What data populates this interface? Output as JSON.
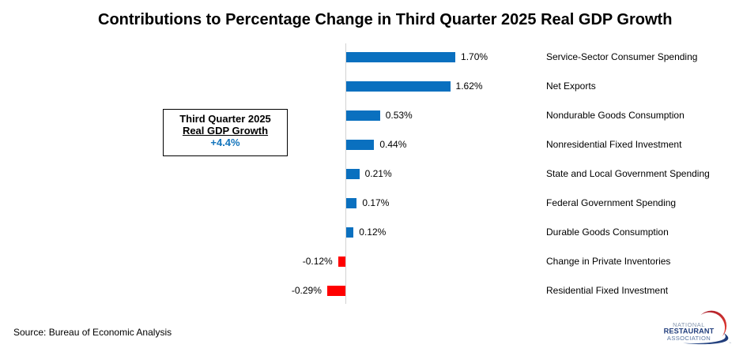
{
  "title": "Contributions to Percentage Change in Third Quarter 2025 Real GDP Growth",
  "chart_data": {
    "type": "bar",
    "orientation": "horizontal",
    "title": "Contributions to Percentage Change in Third Quarter 2025 Real GDP Growth",
    "categories": [
      "Service-Sector Consumer Spending",
      "Net Exports",
      "Nondurable Goods Consumption",
      "Nonresidential Fixed Investment",
      "State and Local Government Spending",
      "Federal Government Spending",
      "Durable Goods Consumption",
      "Change in Private Inventories",
      "Residential Fixed Investment"
    ],
    "values": [
      1.7,
      1.62,
      0.53,
      0.44,
      0.21,
      0.17,
      0.12,
      -0.12,
      -0.29
    ],
    "value_labels": [
      "1.70%",
      "1.62%",
      "0.53%",
      "0.44%",
      "0.21%",
      "0.17%",
      "0.12%",
      "-0.12%",
      "-0.29%"
    ],
    "xlabel": "",
    "ylabel": "",
    "xlim": [
      -0.5,
      3.1
    ],
    "grid": false,
    "legend": false,
    "positive_color": "#0a70bf",
    "negative_color": "#ff0000"
  },
  "callout": {
    "line1": "Third Quarter 2025",
    "line2": "Real GDP Growth",
    "value": "+4.4%"
  },
  "source": "Source: Bureau of Economic Analysis",
  "logo": {
    "line1": "NATIONAL",
    "line2": "RESTAURANT",
    "line3": "ASSOCIATION",
    "trademark": "™"
  },
  "colors": {
    "bar_positive": "#0a70bf",
    "bar_negative": "#ff0000",
    "axis": "#d2d2d2",
    "callout_value_blue": "#1274bc",
    "logo_navy": "#24407e",
    "logo_light_blue": "#8394ae",
    "logo_mid_blue": "#5a76a3",
    "logo_red": "#c32033"
  }
}
